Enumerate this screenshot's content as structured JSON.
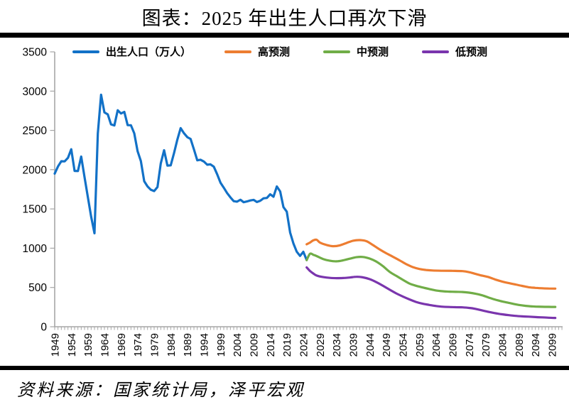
{
  "title": "图表：2025 年出生人口再次下滑",
  "source_note": "资料来源：国家统计局，泽平宏观",
  "colors": {
    "historical": "#1271c7",
    "high_forecast": "#ed7d31",
    "mid_forecast": "#70ad47",
    "low_forecast": "#7a35ad",
    "axis": "#a6a6a6",
    "rule": "#000000"
  },
  "chart_data": {
    "type": "line",
    "title": "图表：2025 年出生人口再次下滑",
    "unit": "万人",
    "ylim": [
      0,
      3500
    ],
    "ytick_interval": 500,
    "yticks": [
      0,
      500,
      1000,
      1500,
      2000,
      2500,
      3000,
      3500
    ],
    "xticks": [
      1949,
      1954,
      1959,
      1964,
      1969,
      1974,
      1979,
      1984,
      1989,
      1994,
      1999,
      2004,
      2009,
      2014,
      2019,
      2024,
      2029,
      2034,
      2039,
      2044,
      2049,
      2054,
      2059,
      2064,
      2069,
      2074,
      2079,
      2084,
      2089,
      2094,
      2099
    ],
    "x_range": [
      1949,
      2102
    ],
    "grid": false,
    "legend_position": "top",
    "series": [
      {
        "id": "birth",
        "name": "出生人口（万人）",
        "color": "#1271c7",
        "points": [
          [
            1949,
            1950
          ],
          [
            1950,
            2042
          ],
          [
            1951,
            2107
          ],
          [
            1952,
            2105
          ],
          [
            1953,
            2151
          ],
          [
            1954,
            2260
          ],
          [
            1955,
            1984
          ],
          [
            1956,
            1982
          ],
          [
            1957,
            2167
          ],
          [
            1958,
            1905
          ],
          [
            1959,
            1650
          ],
          [
            1960,
            1402
          ],
          [
            1961,
            1190
          ],
          [
            1962,
            2460
          ],
          [
            1963,
            2954
          ],
          [
            1964,
            2729
          ],
          [
            1965,
            2704
          ],
          [
            1966,
            2577
          ],
          [
            1967,
            2563
          ],
          [
            1968,
            2757
          ],
          [
            1969,
            2715
          ],
          [
            1970,
            2736
          ],
          [
            1971,
            2567
          ],
          [
            1972,
            2566
          ],
          [
            1973,
            2463
          ],
          [
            1974,
            2235
          ],
          [
            1975,
            2109
          ],
          [
            1976,
            1853
          ],
          [
            1977,
            1786
          ],
          [
            1978,
            1745
          ],
          [
            1979,
            1727
          ],
          [
            1980,
            1779
          ],
          [
            1981,
            2078
          ],
          [
            1982,
            2247
          ],
          [
            1983,
            2052
          ],
          [
            1984,
            2055
          ],
          [
            1985,
            2211
          ],
          [
            1986,
            2384
          ],
          [
            1987,
            2529
          ],
          [
            1988,
            2464
          ],
          [
            1989,
            2414
          ],
          [
            1990,
            2391
          ],
          [
            1991,
            2258
          ],
          [
            1992,
            2119
          ],
          [
            1993,
            2126
          ],
          [
            1994,
            2104
          ],
          [
            1995,
            2063
          ],
          [
            1996,
            2067
          ],
          [
            1997,
            2038
          ],
          [
            1998,
            1942
          ],
          [
            1999,
            1834
          ],
          [
            2000,
            1771
          ],
          [
            2001,
            1702
          ],
          [
            2002,
            1647
          ],
          [
            2003,
            1599
          ],
          [
            2004,
            1593
          ],
          [
            2005,
            1617
          ],
          [
            2006,
            1585
          ],
          [
            2007,
            1595
          ],
          [
            2008,
            1608
          ],
          [
            2009,
            1615
          ],
          [
            2010,
            1588
          ],
          [
            2011,
            1604
          ],
          [
            2012,
            1635
          ],
          [
            2013,
            1640
          ],
          [
            2014,
            1687
          ],
          [
            2015,
            1655
          ],
          [
            2016,
            1786
          ],
          [
            2017,
            1723
          ],
          [
            2018,
            1523
          ],
          [
            2019,
            1465
          ],
          [
            2020,
            1200
          ],
          [
            2021,
            1062
          ],
          [
            2022,
            956
          ],
          [
            2023,
            902
          ],
          [
            2024,
            954
          ],
          [
            2025,
            850
          ]
        ]
      },
      {
        "id": "high",
        "name": "高预测",
        "color": "#ed7d31",
        "points": [
          [
            2025,
            1050
          ],
          [
            2026,
            1072
          ],
          [
            2027,
            1100
          ],
          [
            2028,
            1108
          ],
          [
            2029,
            1072
          ],
          [
            2031,
            1041
          ],
          [
            2033,
            1026
          ],
          [
            2035,
            1036
          ],
          [
            2037,
            1066
          ],
          [
            2039,
            1095
          ],
          [
            2041,
            1103
          ],
          [
            2043,
            1090
          ],
          [
            2045,
            1040
          ],
          [
            2047,
            985
          ],
          [
            2049,
            936
          ],
          [
            2051,
            892
          ],
          [
            2053,
            846
          ],
          [
            2055,
            798
          ],
          [
            2057,
            760
          ],
          [
            2059,
            735
          ],
          [
            2061,
            723
          ],
          [
            2063,
            716
          ],
          [
            2066,
            713
          ],
          [
            2069,
            712
          ],
          [
            2072,
            708
          ],
          [
            2074,
            695
          ],
          [
            2076,
            672
          ],
          [
            2078,
            650
          ],
          [
            2080,
            630
          ],
          [
            2082,
            600
          ],
          [
            2084,
            575
          ],
          [
            2086,
            555
          ],
          [
            2088,
            538
          ],
          [
            2090,
            520
          ],
          [
            2092,
            503
          ],
          [
            2094,
            495
          ],
          [
            2096,
            490
          ],
          [
            2098,
            487
          ],
          [
            2100,
            486
          ]
        ]
      },
      {
        "id": "mid",
        "name": "中预测",
        "color": "#70ad47",
        "points": [
          [
            2025,
            848
          ],
          [
            2026,
            929
          ],
          [
            2027,
            916
          ],
          [
            2028,
            900
          ],
          [
            2030,
            862
          ],
          [
            2032,
            840
          ],
          [
            2034,
            833
          ],
          [
            2036,
            846
          ],
          [
            2038,
            866
          ],
          [
            2040,
            885
          ],
          [
            2042,
            888
          ],
          [
            2044,
            868
          ],
          [
            2046,
            830
          ],
          [
            2048,
            772
          ],
          [
            2050,
            700
          ],
          [
            2052,
            648
          ],
          [
            2054,
            598
          ],
          [
            2056,
            550
          ],
          [
            2058,
            522
          ],
          [
            2060,
            500
          ],
          [
            2062,
            480
          ],
          [
            2064,
            462
          ],
          [
            2066,
            452
          ],
          [
            2068,
            447
          ],
          [
            2070,
            444
          ],
          [
            2072,
            442
          ],
          [
            2074,
            434
          ],
          [
            2076,
            420
          ],
          [
            2078,
            400
          ],
          [
            2080,
            370
          ],
          [
            2082,
            344
          ],
          [
            2084,
            322
          ],
          [
            2086,
            304
          ],
          [
            2088,
            286
          ],
          [
            2090,
            272
          ],
          [
            2092,
            262
          ],
          [
            2094,
            257
          ],
          [
            2096,
            254
          ],
          [
            2098,
            253
          ],
          [
            2100,
            252
          ]
        ]
      },
      {
        "id": "low",
        "name": "低预测",
        "color": "#7a35ad",
        "points": [
          [
            2025,
            755
          ],
          [
            2026,
            710
          ],
          [
            2027,
            678
          ],
          [
            2028,
            652
          ],
          [
            2030,
            632
          ],
          [
            2032,
            622
          ],
          [
            2034,
            619
          ],
          [
            2036,
            620
          ],
          [
            2038,
            627
          ],
          [
            2040,
            636
          ],
          [
            2042,
            629
          ],
          [
            2044,
            606
          ],
          [
            2046,
            568
          ],
          [
            2048,
            522
          ],
          [
            2050,
            472
          ],
          [
            2052,
            425
          ],
          [
            2054,
            385
          ],
          [
            2056,
            348
          ],
          [
            2058,
            316
          ],
          [
            2060,
            293
          ],
          [
            2062,
            278
          ],
          [
            2064,
            264
          ],
          [
            2066,
            255
          ],
          [
            2068,
            251
          ],
          [
            2070,
            249
          ],
          [
            2072,
            247
          ],
          [
            2074,
            240
          ],
          [
            2076,
            227
          ],
          [
            2078,
            207
          ],
          [
            2080,
            188
          ],
          [
            2082,
            172
          ],
          [
            2084,
            158
          ],
          [
            2086,
            147
          ],
          [
            2088,
            138
          ],
          [
            2090,
            132
          ],
          [
            2092,
            128
          ],
          [
            2094,
            123
          ],
          [
            2096,
            119
          ],
          [
            2098,
            115
          ],
          [
            2100,
            112
          ]
        ]
      }
    ]
  }
}
